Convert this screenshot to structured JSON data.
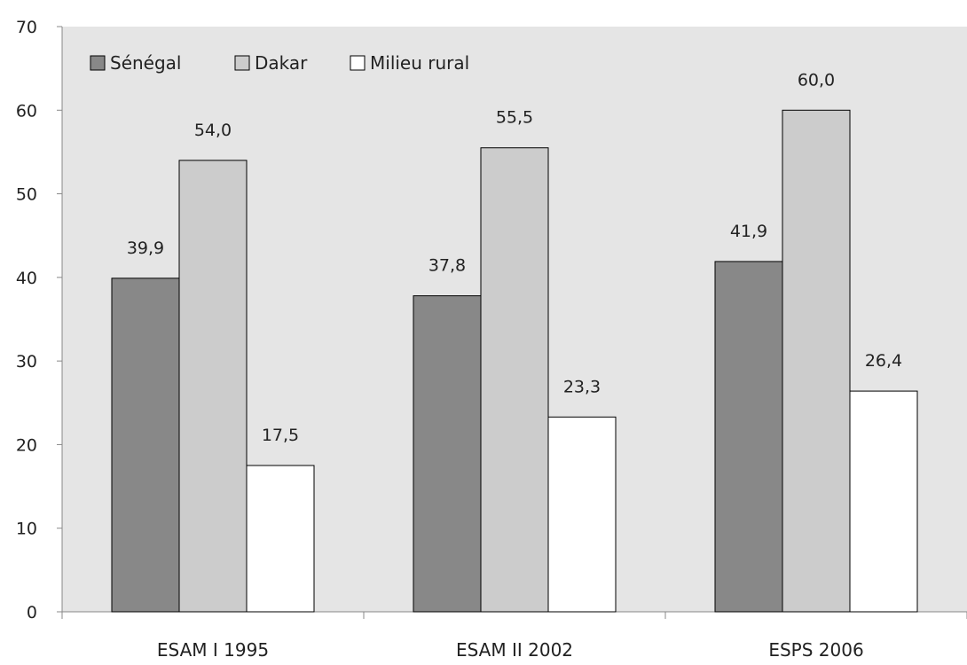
{
  "chart_data": {
    "type": "bar",
    "categories": [
      "ESAM I 1995",
      "ESAM II 2002",
      "ESPS 2006"
    ],
    "series": [
      {
        "name": "Sénégal",
        "values": [
          39.9,
          37.8,
          41.9
        ],
        "labels": [
          "39,9",
          "37,8",
          "41,9"
        ],
        "color": "#888888"
      },
      {
        "name": "Dakar",
        "values": [
          54.0,
          55.5,
          60.0
        ],
        "labels": [
          "54,0",
          "55,5",
          "60,0"
        ],
        "color": "#cccccc"
      },
      {
        "name": "Milieu rural",
        "values": [
          17.5,
          23.3,
          26.4
        ],
        "labels": [
          "17,5",
          "23,3",
          "26,4"
        ],
        "color": "#ffffff"
      }
    ],
    "y_ticks": [
      "0",
      "10",
      "20",
      "30",
      "40",
      "50",
      "60",
      "70"
    ],
    "ylim": [
      0,
      70
    ],
    "title": "",
    "xlabel": "",
    "ylabel": "",
    "grid": false,
    "legend_position": "top-left",
    "plot_background": "#e5e5e5"
  }
}
